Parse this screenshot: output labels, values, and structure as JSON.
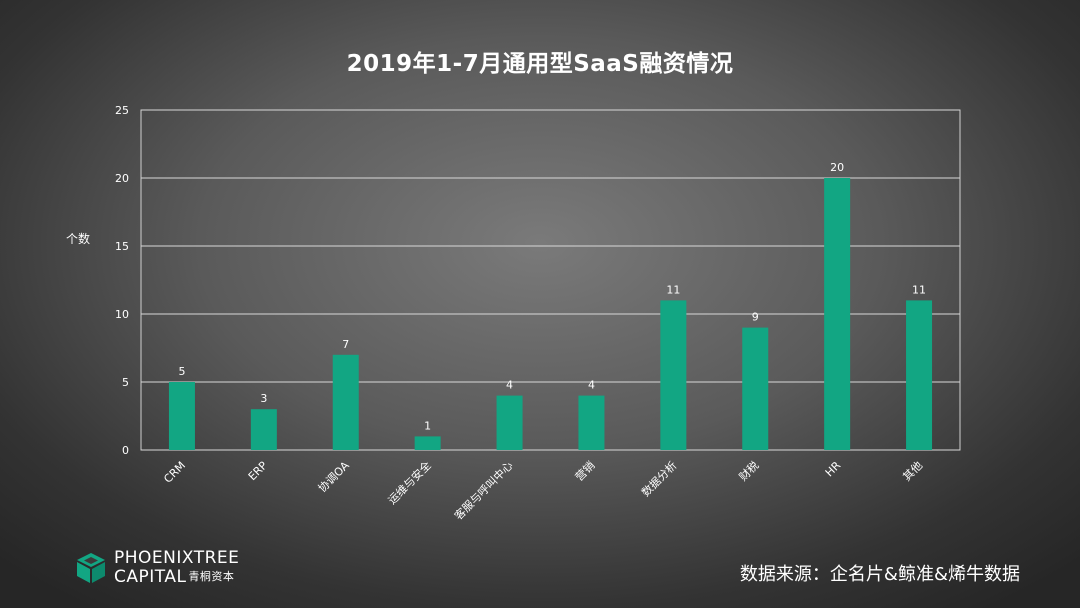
{
  "chart_data": {
    "type": "bar",
    "title": "2019年1-7月通用型SaaS融资情况",
    "xlabel": "",
    "ylabel": "个数",
    "categories": [
      "CRM",
      "ERP",
      "协调OA",
      "运维与安全",
      "客服与呼叫中心",
      "营销",
      "数据分析",
      "财税",
      "HR",
      "其他"
    ],
    "values": [
      5,
      3,
      7,
      1,
      4,
      4,
      11,
      9,
      20,
      11
    ],
    "ylim": [
      0,
      25
    ],
    "yticks": [
      0,
      5,
      10,
      15,
      20,
      25
    ],
    "grid": true,
    "bar_color": "#12a683",
    "data_labels": true
  },
  "logo": {
    "line1": "PHOENIXTREE",
    "line2": "CAPITAL",
    "cn": "青桐资本"
  },
  "source": "数据来源：企名片&鲸准&烯牛数据"
}
